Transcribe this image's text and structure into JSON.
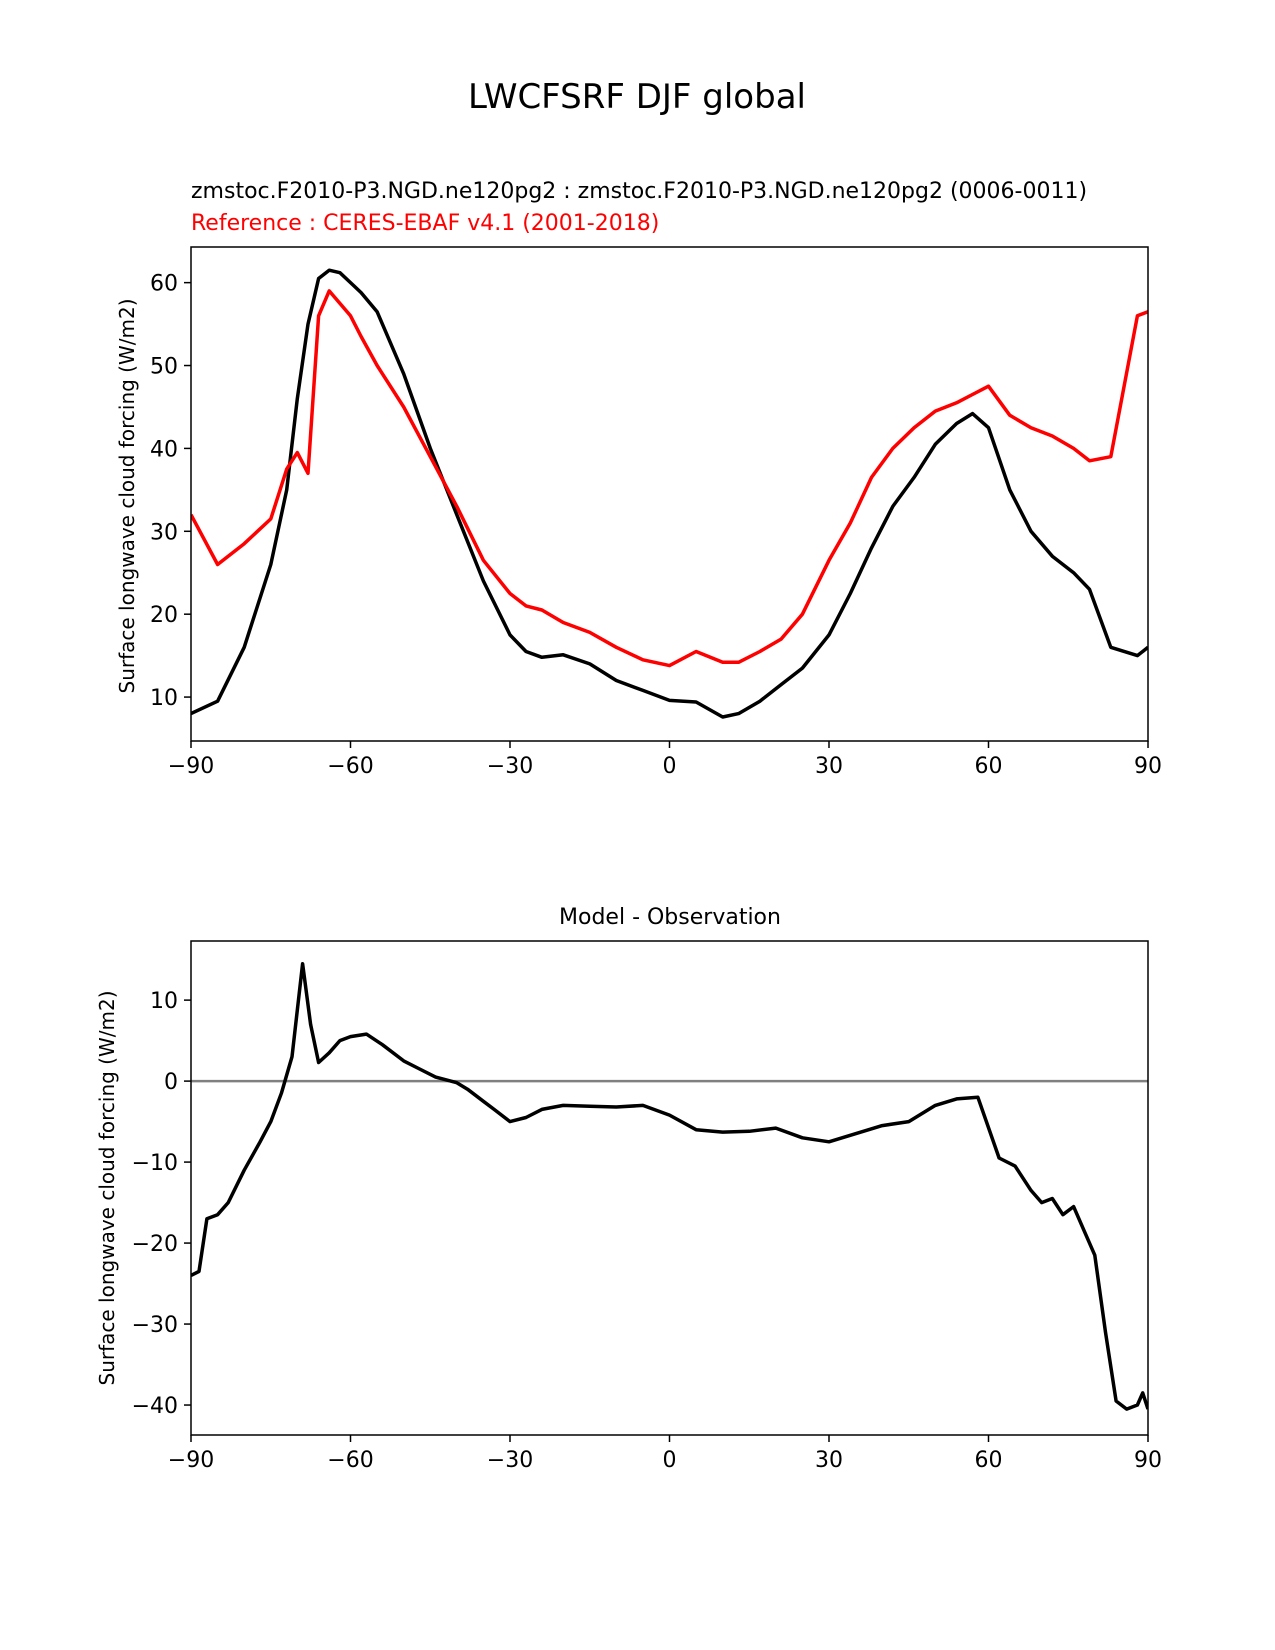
{
  "figure": {
    "suptitle": "LWCFSRF DJF global"
  },
  "colors": {
    "test": "#000000",
    "reference": "#ff0000",
    "zero_line": "#808080",
    "axes": "#000000"
  },
  "chart_data": [
    {
      "type": "line",
      "title_left_1": "zmstoc.F2010-P3.NGD.ne120pg2 : zmstoc.F2010-P3.NGD.ne120pg2 (0006-0011)",
      "title_left_2": "Reference : CERES-EBAF v4.1 (2001-2018)",
      "xlabel": "",
      "ylabel": "Surface longwave cloud forcing (W/m2)",
      "xlim": [
        -90,
        90
      ],
      "ylim": [
        4.7,
        64.3
      ],
      "xticks": [
        -90,
        -60,
        -30,
        0,
        30,
        60,
        90
      ],
      "xtick_labels": [
        "−90",
        "−60",
        "−30",
        "0",
        "30",
        "60",
        "90"
      ],
      "yticks": [
        10,
        20,
        30,
        40,
        50,
        60
      ],
      "ytick_labels": [
        "10",
        "20",
        "30",
        "40",
        "50",
        "60"
      ],
      "grid": false,
      "x": [
        -90,
        -85,
        -80,
        -75,
        -72,
        -70,
        -68,
        -66,
        -64,
        -62,
        -60,
        -58,
        -55,
        -50,
        -45,
        -40,
        -35,
        -30,
        -27,
        -24,
        -20,
        -15,
        -10,
        -5,
        0,
        5,
        10,
        13,
        17,
        21,
        25,
        30,
        34,
        38,
        42,
        46,
        50,
        54,
        57,
        60,
        64,
        68,
        72,
        76,
        79,
        83,
        88,
        90
      ],
      "series": [
        {
          "values": [
            8.0,
            9.5,
            16.0,
            26.0,
            35.0,
            46.0,
            55.0,
            60.5,
            61.5,
            61.2,
            60.0,
            58.8,
            56.5,
            49.0,
            40.0,
            32.0,
            24.0,
            17.5,
            15.5,
            14.8,
            15.1,
            14.0,
            12.0,
            10.8,
            9.6,
            9.4,
            7.6,
            8.0,
            9.5,
            11.5,
            13.5,
            17.5,
            22.5,
            28.0,
            33.0,
            36.5,
            40.5,
            43.0,
            44.2,
            42.5,
            35.0,
            30.0,
            27.0,
            25.0,
            23.0,
            16.0,
            15.0,
            16.0
          ]
        },
        {
          "values": [
            32.0,
            26.0,
            28.5,
            31.5,
            37.5,
            39.5,
            37.0,
            56.0,
            59.0,
            57.5,
            56.0,
            53.5,
            50.0,
            45.0,
            39.0,
            33.0,
            26.5,
            22.5,
            21.0,
            20.5,
            19.0,
            17.8,
            16.0,
            14.5,
            13.8,
            15.5,
            14.2,
            14.2,
            15.5,
            17.0,
            20.0,
            26.5,
            31.0,
            36.5,
            40.0,
            42.5,
            44.5,
            45.5,
            46.5,
            47.5,
            44.0,
            42.5,
            41.5,
            40.0,
            38.5,
            39.0,
            56.0,
            56.5
          ]
        }
      ]
    },
    {
      "type": "line",
      "title": "Model - Observation",
      "xlabel": "",
      "ylabel": "Surface longwave cloud forcing (W/m2)",
      "xlim": [
        -90,
        90
      ],
      "ylim": [
        -43.7,
        17.3
      ],
      "xticks": [
        -90,
        -60,
        -30,
        0,
        30,
        60,
        90
      ],
      "xtick_labels": [
        "−90",
        "−60",
        "−30",
        "0",
        "30",
        "60",
        "90"
      ],
      "yticks": [
        -40,
        -30,
        -20,
        -10,
        0,
        10
      ],
      "ytick_labels": [
        "−40",
        "−30",
        "−20",
        "−10",
        "0",
        "10"
      ],
      "grid": false,
      "zero_line": true,
      "x": [
        -90,
        -88.5,
        -87,
        -85,
        -83,
        -80,
        -77,
        -75,
        -73,
        -71,
        -69,
        -67.5,
        -66,
        -64,
        -62,
        -60,
        -57,
        -54,
        -50,
        -47,
        -44,
        -40,
        -38,
        -35,
        -33,
        -30,
        -27,
        -24,
        -20,
        -15,
        -10,
        -5,
        0,
        5,
        10,
        15,
        20,
        25,
        30,
        35,
        40,
        45,
        50,
        54,
        58,
        62,
        65,
        68,
        70,
        72,
        74,
        76,
        78,
        80,
        82,
        84,
        86,
        88,
        89,
        90
      ],
      "series": [
        {
          "values": [
            -24.0,
            -23.5,
            -17.0,
            -16.5,
            -15.0,
            -11.0,
            -7.5,
            -5.0,
            -1.5,
            3.0,
            14.5,
            7.0,
            2.3,
            3.5,
            5.0,
            5.5,
            5.8,
            4.5,
            2.5,
            1.5,
            0.5,
            -0.2,
            -1.0,
            -2.5,
            -3.5,
            -5.0,
            -4.5,
            -3.5,
            -3.0,
            -3.1,
            -3.2,
            -3.0,
            -4.2,
            -6.0,
            -6.3,
            -6.2,
            -5.8,
            -7.0,
            -7.5,
            -6.5,
            -5.5,
            -5.0,
            -3.0,
            -2.2,
            -2.0,
            -9.5,
            -10.5,
            -13.5,
            -15.0,
            -14.5,
            -16.5,
            -15.5,
            -18.5,
            -21.5,
            -31.0,
            -39.5,
            -40.5,
            -40.0,
            -38.5,
            -40.5
          ]
        }
      ]
    }
  ]
}
